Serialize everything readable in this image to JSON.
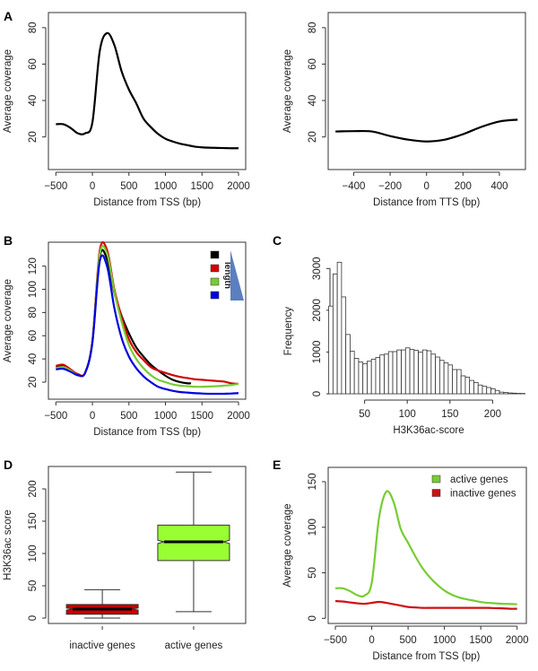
{
  "chart_data": [
    {
      "panel": "A",
      "type": "line",
      "xlabel": "Distance from TSS (bp)",
      "ylabel": "Average coverage",
      "xlim": [
        -500,
        2000
      ],
      "ylim": [
        5,
        85
      ],
      "xticks": [
        -500,
        0,
        500,
        1000,
        1500,
        2000
      ],
      "yticks": [
        20,
        40,
        60,
        80
      ],
      "series": [
        {
          "color": "#000000",
          "x": [
            -500,
            -400,
            -300,
            -200,
            -100,
            0,
            100,
            200,
            300,
            400,
            500,
            600,
            700,
            800,
            900,
            1000,
            1100,
            1200,
            1300,
            1400,
            1500,
            1600,
            1700,
            1800,
            1900,
            2000
          ],
          "y": [
            27,
            27,
            25,
            22,
            22,
            28,
            67,
            77,
            70.5,
            56,
            46,
            38.5,
            30,
            25.4,
            21.6,
            19,
            17.5,
            16.3,
            15.5,
            14.7,
            14.3,
            14.1,
            14,
            13.9,
            13.8,
            13.8
          ]
        }
      ]
    },
    {
      "panel": "",
      "type": "line",
      "xlabel": "Distance from TTS (bp)",
      "ylabel": "Average coverage",
      "xlim": [
        -500,
        500
      ],
      "ylim": [
        5,
        85
      ],
      "xticks": [
        -400,
        -200,
        0,
        200,
        400
      ],
      "yticks": [
        20,
        40,
        60,
        80
      ],
      "series": [
        {
          "color": "#000000",
          "x": [
            -500,
            -400,
            -300,
            -200,
            -100,
            0,
            100,
            200,
            300,
            400,
            500
          ],
          "y": [
            23,
            23.2,
            23,
            20.5,
            18.5,
            17.5,
            18.5,
            21.5,
            25.5,
            28.5,
            29.5
          ]
        }
      ]
    },
    {
      "panel": "B",
      "type": "line",
      "xlabel": "Distance from TSS (bp)",
      "ylabel": "Average coverage",
      "xlim": [
        -500,
        2000
      ],
      "ylim": [
        10,
        135
      ],
      "xticks": [
        -500,
        0,
        500,
        1000,
        1500,
        2000
      ],
      "yticks": [
        20,
        40,
        60,
        80,
        100,
        120
      ],
      "legend_label": "length",
      "legend_colors": [
        "#000000",
        "#d40000",
        "#77cc33",
        "#0000e0"
      ],
      "series": [
        {
          "color": "#000000",
          "x": [
            -500,
            -400,
            -300,
            -200,
            -100,
            0,
            100,
            200,
            300,
            400,
            500,
            600,
            700,
            800,
            900,
            1000,
            1100,
            1200,
            1300,
            1350
          ],
          "y": [
            33,
            33.5,
            30,
            26,
            28,
            55,
            128,
            126,
            97,
            77,
            62,
            50,
            42,
            35,
            30,
            25.5,
            22,
            20,
            19,
            19
          ]
        },
        {
          "color": "#d40000",
          "x": [
            -500,
            -400,
            -300,
            -200,
            -100,
            0,
            100,
            200,
            300,
            400,
            500,
            600,
            700,
            800,
            900,
            1000,
            1100,
            1200,
            1300,
            1400,
            1500,
            1600,
            1700,
            1800,
            1900,
            2000
          ],
          "y": [
            34,
            35,
            31,
            27,
            28,
            56,
            133,
            134,
            100,
            76,
            57,
            46,
            39,
            33,
            30,
            28,
            26,
            24.5,
            23.5,
            22.5,
            22,
            21.5,
            21,
            20.5,
            19,
            18.5
          ]
        },
        {
          "color": "#77cc33",
          "x": [
            -500,
            -400,
            -300,
            -200,
            -100,
            0,
            100,
            200,
            300,
            400,
            500,
            600,
            700,
            800,
            900,
            1000,
            1100,
            1200,
            1300,
            1400,
            1500,
            1600,
            1700,
            1800,
            1900,
            2000
          ],
          "y": [
            32,
            33,
            30,
            26,
            28,
            55,
            130,
            131,
            98,
            72,
            52,
            40,
            32,
            26,
            22,
            20,
            18,
            17,
            16.5,
            16,
            16,
            16.2,
            16.5,
            17,
            17.5,
            18.5
          ]
        },
        {
          "color": "#0000e0",
          "x": [
            -500,
            -400,
            -300,
            -200,
            -100,
            0,
            100,
            200,
            300,
            400,
            500,
            600,
            700,
            800,
            900,
            1000,
            1100,
            1200,
            1300,
            1400,
            1500,
            1600,
            1700,
            1800,
            1900,
            2000
          ],
          "y": [
            31,
            31.5,
            29,
            26,
            28,
            54,
            124,
            120,
            84,
            58,
            42,
            32,
            25,
            20,
            16,
            14,
            12.5,
            11.5,
            11,
            10.5,
            10.2,
            10,
            10,
            10,
            10.2,
            10.5
          ]
        }
      ]
    },
    {
      "panel": "C",
      "type": "bar",
      "xlabel": "H3K36ac-score",
      "ylabel": "Frequency",
      "xticks": [
        50,
        100,
        150,
        200
      ],
      "yticks": [
        0,
        1000,
        2000,
        3000
      ],
      "bin_start": 8,
      "bin_width": 5,
      "values": [
        2100,
        2870,
        3150,
        2320,
        1420,
        1020,
        850,
        760,
        720,
        780,
        830,
        870,
        930,
        950,
        1010,
        1010,
        1050,
        1050,
        1100,
        1060,
        1040,
        1000,
        1050,
        1030,
        950,
        880,
        800,
        740,
        690,
        580,
        580,
        430,
        400,
        320,
        270,
        210,
        180,
        150,
        120,
        80,
        40,
        30,
        20,
        15,
        10,
        8
      ]
    },
    {
      "panel": "D",
      "type": "box",
      "ylabel": "H3K36ac score",
      "ylim": [
        0,
        226
      ],
      "yticks": [
        0,
        50,
        100,
        150,
        200
      ],
      "categories": [
        "inactive genes",
        "active genes"
      ],
      "colors": [
        "#cc0000",
        "#99ff33"
      ],
      "boxes": [
        {
          "whisker_low": 0,
          "q1": 6,
          "median": 14,
          "q3": 21,
          "whisker_high": 44,
          "notch": [
            12.5,
            15.5
          ]
        },
        {
          "whisker_low": 10,
          "q1": 89,
          "median": 118,
          "q3": 144,
          "whisker_high": 226,
          "notch": [
            115.5,
            120.5
          ]
        }
      ]
    },
    {
      "panel": "E",
      "type": "line",
      "xlabel": "Distance from TSS (bp)",
      "ylabel": "Average coverage",
      "xlim": [
        -500,
        2000
      ],
      "ylim": [
        0,
        160
      ],
      "xticks": [
        -500,
        0,
        500,
        1000,
        1500,
        2000
      ],
      "yticks": [
        0,
        50,
        100,
        150
      ],
      "legend_position": "top-right",
      "series": [
        {
          "name": "active genes",
          "color": "#77cc33",
          "x": [
            -500,
            -400,
            -300,
            -200,
            -100,
            0,
            100,
            200,
            300,
            400,
            500,
            600,
            700,
            800,
            900,
            1000,
            1100,
            1200,
            1300,
            1400,
            1500,
            1600,
            1700,
            1800,
            1900,
            2000
          ],
          "y": [
            33,
            33,
            30,
            25.5,
            25,
            39,
            110,
            139,
            128,
            98,
            83,
            68,
            55,
            45,
            37,
            30.5,
            26,
            23,
            21,
            19.5,
            18,
            17,
            16.5,
            16,
            15.8,
            15.5
          ]
        },
        {
          "name": "inactive genes",
          "color": "#cc1111",
          "x": [
            -500,
            -400,
            -300,
            -200,
            -100,
            0,
            100,
            200,
            300,
            400,
            500,
            600,
            700,
            800,
            900,
            1000,
            1100,
            1200,
            1300,
            1400,
            1500,
            1600,
            1700,
            1800,
            1900,
            2000
          ],
          "y": [
            19,
            18.5,
            17.5,
            16.5,
            16,
            17,
            18,
            17,
            15.5,
            14,
            12.5,
            12,
            11.5,
            11.5,
            11.5,
            11.5,
            11.5,
            11.5,
            11.5,
            11.5,
            11.5,
            11.5,
            11.2,
            11,
            10.5,
            10.5
          ]
        }
      ]
    }
  ]
}
